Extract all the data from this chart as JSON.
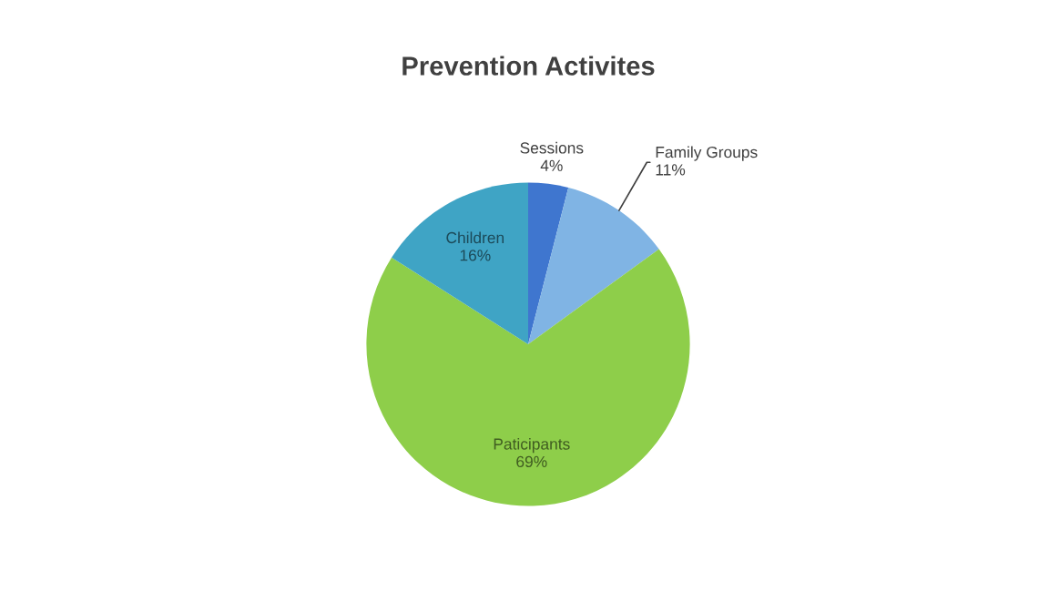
{
  "chart_data": {
    "type": "pie",
    "title": "Prevention Activites",
    "categories": [
      "Sessions",
      "Family Groups",
      "Paticipants",
      "Children"
    ],
    "values": [
      4,
      11,
      69,
      16
    ],
    "colors": [
      "#3f76cf",
      "#80b4e4",
      "#8ece4a",
      "#3fa4c5"
    ],
    "value_labels": [
      "4%",
      "11%",
      "69%",
      "16%"
    ]
  }
}
